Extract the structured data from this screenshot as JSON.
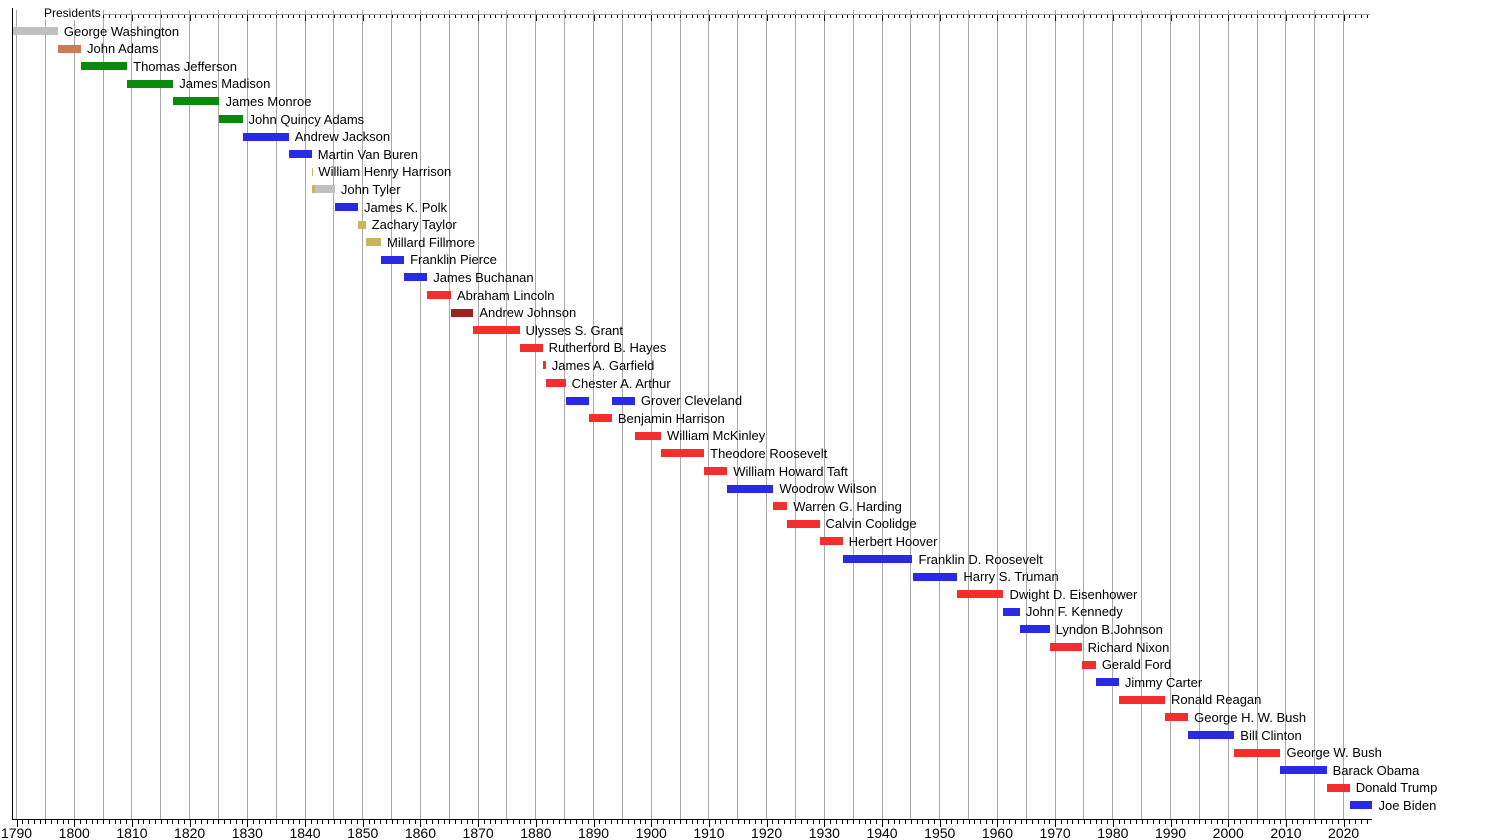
{
  "chart_data": {
    "type": "gantt",
    "title": "Presidents",
    "x_axis": {
      "min": 1789.3,
      "max": 2025,
      "major_tick_interval": 10,
      "minor_tick_interval": 1,
      "gridline_interval": 5,
      "tick_labels": [
        "1790",
        "1800",
        "1810",
        "1820",
        "1830",
        "1840",
        "1850",
        "1860",
        "1870",
        "1880",
        "1890",
        "1900",
        "1910",
        "1920",
        "1930",
        "1940",
        "1950",
        "1960",
        "1970",
        "1980",
        "1990",
        "2000",
        "2010",
        "2020"
      ]
    },
    "party_colors": {
      "independent": "#c0c0c0",
      "federalist": "#cd7a58",
      "democratic-republican": "#0a8a0a",
      "democratic": "#2a2ae6",
      "whig": "#c9b45f",
      "republican": "#f42e2e",
      "national-union": "#9c2323"
    },
    "rows": [
      {
        "name": "George Washington",
        "segments": [
          {
            "start": 1789.33,
            "end": 1797.17,
            "party": "independent"
          }
        ]
      },
      {
        "name": "John Adams",
        "segments": [
          {
            "start": 1797.17,
            "end": 1801.17,
            "party": "federalist"
          }
        ]
      },
      {
        "name": "Thomas Jefferson",
        "segments": [
          {
            "start": 1801.17,
            "end": 1809.17,
            "party": "democratic-republican"
          }
        ]
      },
      {
        "name": "James Madison",
        "segments": [
          {
            "start": 1809.17,
            "end": 1817.17,
            "party": "democratic-republican"
          }
        ]
      },
      {
        "name": "James Monroe",
        "segments": [
          {
            "start": 1817.17,
            "end": 1825.17,
            "party": "democratic-republican"
          }
        ]
      },
      {
        "name": "John Quincy Adams",
        "segments": [
          {
            "start": 1825.17,
            "end": 1829.17,
            "party": "democratic-republican"
          }
        ]
      },
      {
        "name": "Andrew Jackson",
        "segments": [
          {
            "start": 1829.17,
            "end": 1837.17,
            "party": "democratic"
          }
        ]
      },
      {
        "name": "Martin Van Buren",
        "segments": [
          {
            "start": 1837.17,
            "end": 1841.17,
            "party": "democratic"
          }
        ]
      },
      {
        "name": "William Henry Harrison",
        "segments": [
          {
            "start": 1841.17,
            "end": 1841.26,
            "party": "whig"
          }
        ]
      },
      {
        "name": "John Tyler",
        "segments": [
          {
            "start": 1841.26,
            "end": 1841.71,
            "party": "whig"
          },
          {
            "start": 1841.71,
            "end": 1845.17,
            "party": "independent"
          }
        ]
      },
      {
        "name": "James K. Polk",
        "segments": [
          {
            "start": 1845.17,
            "end": 1849.17,
            "party": "democratic"
          }
        ]
      },
      {
        "name": "Zachary Taylor",
        "segments": [
          {
            "start": 1849.17,
            "end": 1850.52,
            "party": "whig"
          }
        ]
      },
      {
        "name": "Millard Fillmore",
        "segments": [
          {
            "start": 1850.52,
            "end": 1853.17,
            "party": "whig"
          }
        ]
      },
      {
        "name": "Franklin Pierce",
        "segments": [
          {
            "start": 1853.17,
            "end": 1857.17,
            "party": "democratic"
          }
        ]
      },
      {
        "name": "James Buchanan",
        "segments": [
          {
            "start": 1857.17,
            "end": 1861.17,
            "party": "democratic"
          }
        ]
      },
      {
        "name": "Abraham Lincoln",
        "segments": [
          {
            "start": 1861.17,
            "end": 1865.29,
            "party": "republican"
          }
        ]
      },
      {
        "name": "Andrew Johnson",
        "segments": [
          {
            "start": 1865.29,
            "end": 1869.17,
            "party": "national-union"
          }
        ]
      },
      {
        "name": "Ulysses S. Grant",
        "segments": [
          {
            "start": 1869.17,
            "end": 1877.17,
            "party": "republican"
          }
        ]
      },
      {
        "name": "Rutherford B. Hayes",
        "segments": [
          {
            "start": 1877.17,
            "end": 1881.17,
            "party": "republican"
          }
        ]
      },
      {
        "name": "James A. Garfield",
        "segments": [
          {
            "start": 1881.17,
            "end": 1881.72,
            "party": "republican"
          }
        ]
      },
      {
        "name": "Chester A. Arthur",
        "segments": [
          {
            "start": 1881.72,
            "end": 1885.17,
            "party": "republican"
          }
        ]
      },
      {
        "name": "Grover Cleveland",
        "segments": [
          {
            "start": 1885.17,
            "end": 1889.17,
            "party": "democratic"
          },
          {
            "start": 1893.17,
            "end": 1897.17,
            "party": "democratic"
          }
        ]
      },
      {
        "name": "Benjamin Harrison",
        "segments": [
          {
            "start": 1889.17,
            "end": 1893.17,
            "party": "republican"
          }
        ]
      },
      {
        "name": "William McKinley",
        "segments": [
          {
            "start": 1897.17,
            "end": 1901.7,
            "party": "republican"
          }
        ]
      },
      {
        "name": "Theodore Roosevelt",
        "segments": [
          {
            "start": 1901.7,
            "end": 1909.17,
            "party": "republican"
          }
        ]
      },
      {
        "name": "William Howard Taft",
        "segments": [
          {
            "start": 1909.17,
            "end": 1913.17,
            "party": "republican"
          }
        ]
      },
      {
        "name": "Woodrow Wilson",
        "segments": [
          {
            "start": 1913.17,
            "end": 1921.17,
            "party": "democratic"
          }
        ]
      },
      {
        "name": "Warren G. Harding",
        "segments": [
          {
            "start": 1921.17,
            "end": 1923.58,
            "party": "republican"
          }
        ]
      },
      {
        "name": "Calvin Coolidge",
        "segments": [
          {
            "start": 1923.58,
            "end": 1929.17,
            "party": "republican"
          }
        ]
      },
      {
        "name": "Herbert Hoover",
        "segments": [
          {
            "start": 1929.17,
            "end": 1933.17,
            "party": "republican"
          }
        ]
      },
      {
        "name": "Franklin D. Roosevelt",
        "segments": [
          {
            "start": 1933.17,
            "end": 1945.28,
            "party": "democratic"
          }
        ]
      },
      {
        "name": "Harry S. Truman",
        "segments": [
          {
            "start": 1945.28,
            "end": 1953.05,
            "party": "democratic"
          }
        ]
      },
      {
        "name": "Dwight D. Eisenhower",
        "segments": [
          {
            "start": 1953.05,
            "end": 1961.05,
            "party": "republican"
          }
        ]
      },
      {
        "name": "John F. Kennedy",
        "segments": [
          {
            "start": 1961.05,
            "end": 1963.89,
            "party": "democratic"
          }
        ]
      },
      {
        "name": "Lyndon B.Johnson",
        "segments": [
          {
            "start": 1963.89,
            "end": 1969.05,
            "party": "democratic"
          }
        ]
      },
      {
        "name": "Richard Nixon",
        "segments": [
          {
            "start": 1969.05,
            "end": 1974.6,
            "party": "republican"
          }
        ]
      },
      {
        "name": "Gerald Ford",
        "segments": [
          {
            "start": 1974.6,
            "end": 1977.05,
            "party": "republican"
          }
        ]
      },
      {
        "name": "Jimmy Carter",
        "segments": [
          {
            "start": 1977.05,
            "end": 1981.05,
            "party": "democratic"
          }
        ]
      },
      {
        "name": "Ronald Reagan",
        "segments": [
          {
            "start": 1981.05,
            "end": 1989.05,
            "party": "republican"
          }
        ]
      },
      {
        "name": "George H. W. Bush",
        "segments": [
          {
            "start": 1989.05,
            "end": 1993.05,
            "party": "republican"
          }
        ]
      },
      {
        "name": "Bill Clinton",
        "segments": [
          {
            "start": 1993.05,
            "end": 2001.05,
            "party": "democratic"
          }
        ]
      },
      {
        "name": "George W. Bush",
        "segments": [
          {
            "start": 2001.05,
            "end": 2009.05,
            "party": "republican"
          }
        ]
      },
      {
        "name": "Barack Obama",
        "segments": [
          {
            "start": 2009.05,
            "end": 2017.05,
            "party": "democratic"
          }
        ]
      },
      {
        "name": "Donald Trump",
        "segments": [
          {
            "start": 2017.05,
            "end": 2021.05,
            "party": "republican"
          }
        ]
      },
      {
        "name": "Joe Biden",
        "segments": [
          {
            "start": 2021.05,
            "end": 2025.0,
            "party": "democratic"
          }
        ]
      }
    ]
  }
}
